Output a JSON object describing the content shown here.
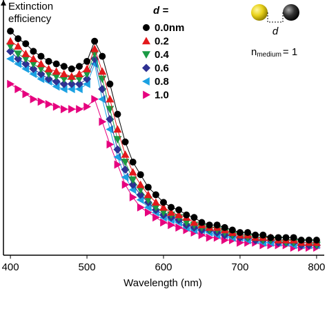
{
  "chart_data": {
    "type": "line",
    "y_axis_label": "Extinction efficiency",
    "x_axis_label": "Wavelength (nm)",
    "legend_title": "d =",
    "annotations": {
      "gap_label": "d",
      "medium_n": "n",
      "medium_sub": "medium",
      "medium_eq": "= 1"
    },
    "x": [
      400,
      410,
      420,
      430,
      440,
      450,
      460,
      470,
      480,
      490,
      500,
      510,
      520,
      530,
      540,
      550,
      560,
      570,
      580,
      590,
      600,
      610,
      620,
      630,
      640,
      650,
      660,
      670,
      680,
      690,
      700,
      710,
      720,
      730,
      740,
      750,
      760,
      770,
      780,
      790,
      800
    ],
    "xlim": [
      390,
      810
    ],
    "xticks": [
      400,
      500,
      600,
      700,
      800
    ],
    "ylim": [
      0,
      100
    ],
    "series": [
      {
        "name": "0.0nm",
        "color": "#000000",
        "marker": "circle",
        "values": [
          89,
          86,
          84,
          81,
          79,
          77,
          76,
          75,
          74,
          75,
          77,
          85,
          79,
          68,
          56,
          45,
          37,
          32,
          27,
          24,
          21,
          19,
          18,
          16,
          15,
          13,
          12,
          12,
          11,
          10,
          9,
          9,
          8,
          8,
          7,
          7,
          7,
          7,
          6,
          6,
          6
        ]
      },
      {
        "name": "0.2",
        "color": "#e3191c",
        "marker": "triangle-up",
        "values": [
          85,
          83,
          80,
          78,
          76,
          74,
          73,
          72,
          71,
          72,
          74,
          82,
          73,
          62,
          50,
          40,
          33,
          28,
          24,
          21,
          19,
          17,
          16,
          15,
          13,
          12,
          11,
          11,
          10,
          9,
          8,
          8,
          7,
          7,
          7,
          6,
          6,
          6,
          5,
          5,
          5
        ]
      },
      {
        "name": "0.4",
        "color": "#1a9a44",
        "marker": "triangle-down",
        "values": [
          83,
          80,
          78,
          76,
          74,
          72,
          71,
          70,
          70,
          70,
          72,
          80,
          70,
          58,
          46,
          37,
          30,
          26,
          22,
          19,
          17,
          16,
          15,
          13,
          12,
          11,
          10,
          10,
          9,
          8,
          8,
          7,
          7,
          6,
          6,
          6,
          5,
          5,
          5,
          5,
          4
        ]
      },
      {
        "name": "0.6",
        "color": "#2e3192",
        "marker": "diamond",
        "values": [
          81,
          78,
          76,
          74,
          72,
          70,
          69,
          68,
          68,
          68,
          70,
          78,
          66,
          54,
          42,
          34,
          28,
          24,
          21,
          18,
          16,
          15,
          14,
          12,
          11,
          10,
          10,
          9,
          8,
          8,
          7,
          7,
          6,
          6,
          6,
          5,
          5,
          5,
          4,
          4,
          4
        ]
      },
      {
        "name": "0.8",
        "color": "#1ba1e2",
        "marker": "triangle-left",
        "values": [
          78,
          76,
          74,
          72,
          70,
          69,
          67,
          66,
          66,
          66,
          68,
          76,
          62,
          50,
          39,
          31,
          26,
          22,
          19,
          17,
          15,
          14,
          13,
          11,
          10,
          10,
          9,
          8,
          8,
          7,
          7,
          6,
          6,
          5,
          5,
          5,
          5,
          4,
          4,
          4,
          4
        ]
      },
      {
        "name": "1.0",
        "color": "#e6007e",
        "marker": "triangle-right",
        "values": [
          68,
          66,
          64,
          62,
          61,
          60,
          59,
          58,
          58,
          58,
          59,
          62,
          53,
          44,
          36,
          28,
          23,
          19,
          17,
          15,
          13,
          12,
          11,
          10,
          9,
          8,
          7,
          7,
          6,
          6,
          5,
          5,
          5,
          4,
          4,
          4,
          4,
          3,
          3,
          3,
          3
        ]
      }
    ]
  }
}
